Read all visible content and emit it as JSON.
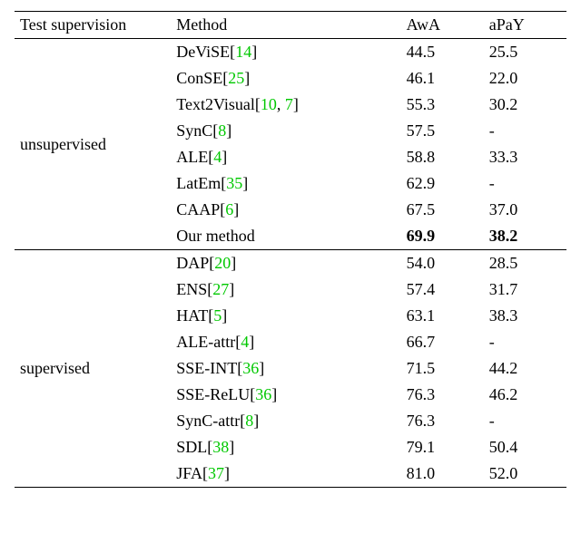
{
  "headers": {
    "supervision": "Test supervision",
    "method": "Method",
    "awa": "AwA",
    "apay": "aPaY"
  },
  "groups": [
    {
      "label": "unsupervised",
      "rows": [
        {
          "method": "DeViSE",
          "cites": [
            "14"
          ],
          "awa": "44.5",
          "apay": "25.5",
          "bold": false
        },
        {
          "method": "ConSE",
          "cites": [
            "25"
          ],
          "awa": "46.1",
          "apay": "22.0",
          "bold": false
        },
        {
          "method": "Text2Visual",
          "cites": [
            "10",
            "7"
          ],
          "awa": "55.3",
          "apay": "30.2",
          "bold": false
        },
        {
          "method": "SynC",
          "cites": [
            "8"
          ],
          "awa": "57.5",
          "apay": "-",
          "bold": false
        },
        {
          "method": "ALE",
          "cites": [
            "4"
          ],
          "awa": "58.8",
          "apay": "33.3",
          "bold": false
        },
        {
          "method": "LatEm",
          "cites": [
            "35"
          ],
          "awa": "62.9",
          "apay": "-",
          "bold": false
        },
        {
          "method": "CAAP",
          "cites": [
            "6"
          ],
          "awa": "67.5",
          "apay": "37.0",
          "bold": false
        },
        {
          "method": "Our method",
          "cites": [],
          "awa": "69.9",
          "apay": "38.2",
          "bold": true
        }
      ]
    },
    {
      "label": "supervised",
      "rows": [
        {
          "method": "DAP",
          "cites": [
            "20"
          ],
          "awa": "54.0",
          "apay": "28.5",
          "bold": false
        },
        {
          "method": "ENS",
          "cites": [
            "27"
          ],
          "awa": "57.4",
          "apay": "31.7",
          "bold": false
        },
        {
          "method": "HAT",
          "cites": [
            "5"
          ],
          "awa": "63.1",
          "apay": "38.3",
          "bold": false
        },
        {
          "method": "ALE-attr",
          "cites": [
            "4"
          ],
          "awa": "66.7",
          "apay": "-",
          "bold": false
        },
        {
          "method": "SSE-INT",
          "cites": [
            "36"
          ],
          "awa": "71.5",
          "apay": "44.2",
          "bold": false
        },
        {
          "method": "SSE-ReLU",
          "cites": [
            "36"
          ],
          "awa": "76.3",
          "apay": "46.2",
          "bold": false
        },
        {
          "method": "SynC-attr",
          "cites": [
            "8"
          ],
          "awa": "76.3",
          "apay": "-",
          "bold": false
        },
        {
          "method": "SDL",
          "cites": [
            "38"
          ],
          "awa": "79.1",
          "apay": "50.4",
          "bold": false
        },
        {
          "method": "JFA",
          "cites": [
            "37"
          ],
          "awa": "81.0",
          "apay": "52.0",
          "bold": false
        }
      ]
    }
  ]
}
